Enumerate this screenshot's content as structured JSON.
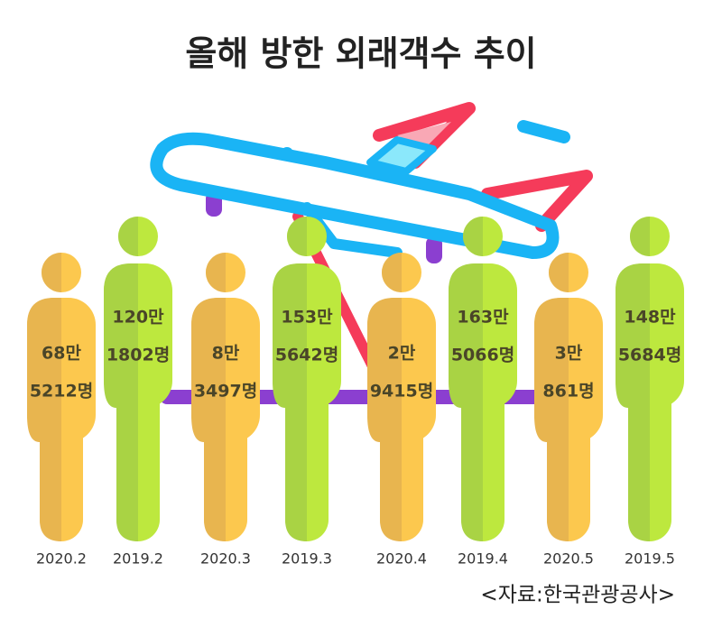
{
  "title": "올해 방한 외래객수 추이",
  "items": [
    {
      "period": "2020.2",
      "line1": "68만",
      "line2": "5212명"
    },
    {
      "period": "2019.2",
      "line1": "120만",
      "line2": "1802명"
    },
    {
      "period": "2020.3",
      "line1": "8만",
      "line2": "3497명"
    },
    {
      "period": "2019.3",
      "line1": "153만",
      "line2": "5642명"
    },
    {
      "period": "2020.4",
      "line1": "2만",
      "line2": "9415명"
    },
    {
      "period": "2019.4",
      "line1": "163만",
      "line2": "5066명"
    },
    {
      "period": "2020.5",
      "line1": "3만",
      "line2": "861명"
    },
    {
      "period": "2019.5",
      "line1": "148만",
      "line2": "5684명"
    }
  ],
  "source": "<자료:한국관광공사>"
}
